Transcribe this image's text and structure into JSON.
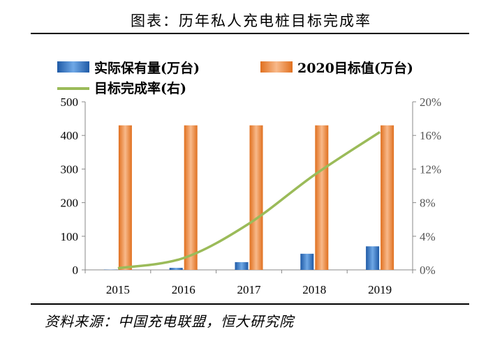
{
  "header": {
    "title": "图表：历年私人充电桩目标完成率"
  },
  "footer": {
    "source": "资料来源：中国充电联盟，恒大研究院"
  },
  "chart_data": {
    "type": "bar",
    "categories": [
      "2015",
      "2016",
      "2017",
      "2018",
      "2019"
    ],
    "series": [
      {
        "name": "实际保有量(万台)",
        "kind": "bar",
        "axis": "left",
        "values": [
          0.8,
          6,
          23,
          48,
          70
        ],
        "color": "#3f7fc8"
      },
      {
        "name": "2020目标值(万台)",
        "kind": "bar",
        "axis": "left",
        "values": [
          430,
          430,
          430,
          430,
          430
        ],
        "color": "#ef8a3f"
      },
      {
        "name": "目标完成率(右)",
        "kind": "line",
        "axis": "right",
        "values": [
          0.2,
          1.4,
          5.5,
          11.3,
          16.4
        ],
        "color": "#9bbb59"
      }
    ],
    "left_axis": {
      "min": 0,
      "max": 500,
      "ticks": [
        "0",
        "100",
        "200",
        "300",
        "400",
        "500"
      ]
    },
    "right_axis": {
      "min": 0,
      "max": 20,
      "ticks": [
        "0%",
        "4%",
        "8%",
        "12%",
        "16%",
        "20%"
      ]
    },
    "grid": false,
    "legend_position": "top"
  }
}
